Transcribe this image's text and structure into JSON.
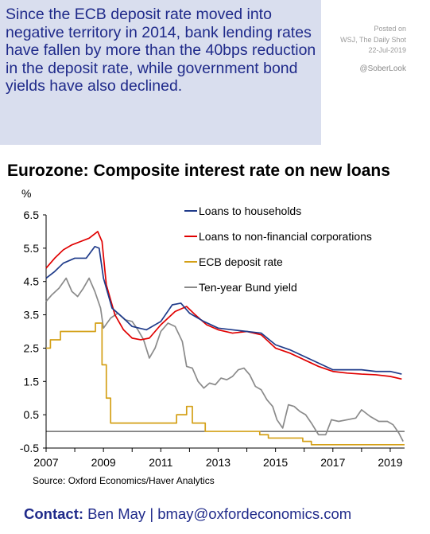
{
  "callout": {
    "text": "Since the ECB deposit rate moved into negative territory in 2014, bank lending rates have fallen by more than the 40bps reduction in the deposit rate, while government bond yields have also declined."
  },
  "meta": {
    "posted": "Posted on",
    "source": "WSJ, The Daily Shot",
    "date": "22-Jul-2019",
    "handle": "@SoberLook"
  },
  "footer": {
    "source": "Source: Oxford Economics/Haver Analytics",
    "contact_label": "Contact:",
    "contact_text": "Ben May | bmay@oxfordeconomics.com"
  },
  "colors": {
    "households": "#1f3b8a",
    "nfc": "#e00000",
    "ecb": "#d4a017",
    "bund": "#8a8a8a",
    "callout_bg": "#d9deee",
    "accent_text": "#1f2a8a"
  },
  "chart_data": {
    "type": "line",
    "title": "Eurozone: Composite interest rate on new loans",
    "ylabel": "%",
    "xlabel": "",
    "xlim": [
      2007.0,
      2019.5
    ],
    "ylim": [
      -0.5,
      6.5
    ],
    "xticks": [
      2007,
      2009,
      2011,
      2013,
      2015,
      2017,
      2019
    ],
    "yticks": [
      -0.5,
      0.5,
      1.5,
      2.5,
      3.5,
      4.5,
      5.5,
      6.5
    ],
    "ytick_labels": [
      "-0.5",
      "0.5",
      "1.5",
      "2.5",
      "3.5",
      "4.5",
      "5.5",
      "6.5"
    ],
    "zero_line": 0,
    "grid": false,
    "legend_position": "top-right",
    "series": [
      {
        "name": "Loans to households",
        "color_key": "households",
        "x": [
          2007.0,
          2007.3,
          2007.6,
          2008.0,
          2008.4,
          2008.7,
          2008.85,
          2009.0,
          2009.3,
          2009.7,
          2010.0,
          2010.5,
          2011.0,
          2011.4,
          2011.7,
          2012.0,
          2012.5,
          2013.0,
          2013.5,
          2014.0,
          2014.5,
          2015.0,
          2015.5,
          2016.0,
          2016.5,
          2017.0,
          2017.5,
          2018.0,
          2018.5,
          2019.0,
          2019.4
        ],
        "y": [
          4.6,
          4.8,
          5.05,
          5.2,
          5.2,
          5.55,
          5.5,
          4.6,
          3.7,
          3.4,
          3.15,
          3.05,
          3.3,
          3.8,
          3.85,
          3.55,
          3.3,
          3.1,
          3.05,
          3.0,
          2.95,
          2.6,
          2.45,
          2.25,
          2.05,
          1.85,
          1.85,
          1.85,
          1.8,
          1.8,
          1.72
        ]
      },
      {
        "name": "Loans to non-financial corporations",
        "color_key": "nfc",
        "x": [
          2007.0,
          2007.3,
          2007.6,
          2007.9,
          2008.2,
          2008.5,
          2008.8,
          2008.95,
          2009.1,
          2009.4,
          2009.7,
          2010.0,
          2010.3,
          2010.6,
          2011.0,
          2011.5,
          2011.9,
          2012.2,
          2012.6,
          2013.0,
          2013.5,
          2014.0,
          2014.5,
          2015.0,
          2015.5,
          2016.0,
          2016.5,
          2017.0,
          2017.5,
          2018.0,
          2018.5,
          2019.0,
          2019.4
        ],
        "y": [
          4.9,
          5.2,
          5.45,
          5.6,
          5.7,
          5.8,
          6.0,
          5.7,
          4.4,
          3.5,
          3.05,
          2.8,
          2.75,
          2.8,
          3.2,
          3.6,
          3.75,
          3.5,
          3.2,
          3.05,
          2.95,
          3.0,
          2.9,
          2.5,
          2.35,
          2.15,
          1.95,
          1.8,
          1.75,
          1.72,
          1.7,
          1.65,
          1.57
        ]
      },
      {
        "name": "ECB deposit rate",
        "color_key": "ecb",
        "step": true,
        "x": [
          2007.0,
          2007.15,
          2007.3,
          2007.5,
          2008.5,
          2008.72,
          2008.85,
          2008.95,
          2009.1,
          2009.25,
          2011.3,
          2011.55,
          2011.9,
          2012.1,
          2012.55,
          2014.45,
          2014.75,
          2015.95,
          2016.25,
          2019.5
        ],
        "y": [
          2.5,
          2.75,
          2.75,
          3.0,
          3.0,
          3.25,
          3.25,
          2.0,
          1.0,
          0.25,
          0.25,
          0.5,
          0.75,
          0.25,
          0.0,
          -0.1,
          -0.2,
          -0.3,
          -0.4,
          -0.4
        ]
      },
      {
        "name": "Ten-year Bund yield",
        "color_key": "bund",
        "x": [
          2007.0,
          2007.2,
          2007.45,
          2007.7,
          2007.9,
          2008.1,
          2008.3,
          2008.5,
          2008.7,
          2008.9,
          2009.0,
          2009.25,
          2009.5,
          2009.75,
          2010.0,
          2010.2,
          2010.4,
          2010.6,
          2010.8,
          2011.0,
          2011.25,
          2011.5,
          2011.75,
          2011.9,
          2012.1,
          2012.3,
          2012.5,
          2012.7,
          2012.9,
          2013.1,
          2013.3,
          2013.5,
          2013.7,
          2013.9,
          2014.1,
          2014.3,
          2014.5,
          2014.7,
          2014.9,
          2015.05,
          2015.25,
          2015.45,
          2015.65,
          2015.85,
          2016.05,
          2016.25,
          2016.5,
          2016.75,
          2016.95,
          2017.2,
          2017.5,
          2017.8,
          2018.0,
          2018.3,
          2018.6,
          2018.9,
          2019.1,
          2019.3,
          2019.45
        ],
        "y": [
          3.9,
          4.1,
          4.3,
          4.6,
          4.2,
          4.05,
          4.3,
          4.6,
          4.2,
          3.7,
          3.1,
          3.4,
          3.55,
          3.35,
          3.3,
          3.05,
          2.75,
          2.2,
          2.5,
          3.0,
          3.25,
          3.15,
          2.7,
          1.95,
          1.9,
          1.5,
          1.3,
          1.45,
          1.4,
          1.6,
          1.55,
          1.65,
          1.85,
          1.9,
          1.7,
          1.35,
          1.25,
          0.95,
          0.75,
          0.35,
          0.1,
          0.8,
          0.75,
          0.6,
          0.5,
          0.25,
          -0.1,
          -0.1,
          0.35,
          0.3,
          0.35,
          0.4,
          0.65,
          0.45,
          0.3,
          0.3,
          0.2,
          -0.05,
          -0.3
        ]
      }
    ]
  }
}
